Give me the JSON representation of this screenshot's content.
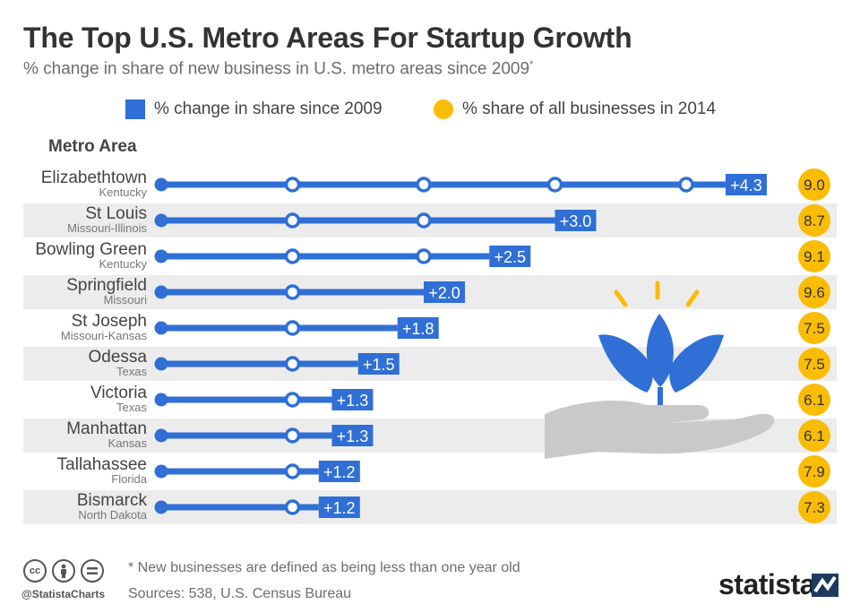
{
  "title": "The Top U.S. Metro Areas For Startup Growth",
  "subtitle": "% change in share of new business in U.S. metro areas since 2009",
  "subtitle_mark": "*",
  "column_header": "Metro Area",
  "colors": {
    "blue": "#2f6fd6",
    "yellow": "#fbbc04",
    "row_shade": "#ececec"
  },
  "chart_data": {
    "type": "bar",
    "categories": [
      "Elizabethtown",
      "St Louis",
      "Bowling Green",
      "Springfield",
      "St Joseph",
      "Odessa",
      "Victoria",
      "Manhattan",
      "Tallahassee",
      "Bismarck"
    ],
    "subcategories": [
      "Kentucky",
      "Missouri-Illinois",
      "Kentucky",
      "Missouri",
      "Missouri-Kansas",
      "Texas",
      "Texas",
      "Kansas",
      "Florida",
      "North Dakota"
    ],
    "series": [
      {
        "name": "% change in share since 2009",
        "values": [
          4.3,
          3.0,
          2.5,
          2.0,
          1.8,
          1.5,
          1.3,
          1.3,
          1.2,
          1.2
        ],
        "labels": [
          "+4.3",
          "+3.0",
          "+2.5",
          "+2.0",
          "+1.8",
          "+1.5",
          "+1.3",
          "+1.3",
          "+1.2",
          "+1.2"
        ]
      },
      {
        "name": "% share of all businesses in 2014",
        "values": [
          9.0,
          8.7,
          9.1,
          9.6,
          7.5,
          7.5,
          6.1,
          6.1,
          7.9,
          7.3
        ],
        "labels": [
          "9.0",
          "8.7",
          "9.1",
          "9.6",
          "7.5",
          "7.5",
          "6.1",
          "6.1",
          "7.9",
          "7.3"
        ]
      }
    ],
    "xlim": [
      0,
      4.6
    ],
    "marker_step": 1,
    "legend": "top"
  },
  "footer": {
    "note": "* New businesses are defined as being less than one year old",
    "sources": "Sources: 538, U.S. Census Bureau",
    "handle": "@StatistaCharts",
    "brand": "statista",
    "cc_icons": [
      "cc-icon",
      "by-icon",
      "nd-icon"
    ]
  },
  "illustration": {
    "name": "hand-holding-sprout-icon"
  }
}
